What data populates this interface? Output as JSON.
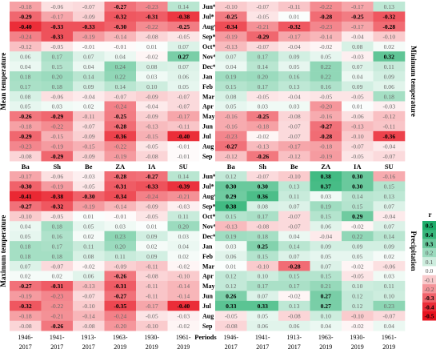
{
  "chart_data": [
    {
      "type": "heatmap",
      "ylabel": "Mean temperature",
      "columns": [
        "Ba",
        "Sh",
        "Be",
        "ZA",
        "IA",
        "SU"
      ],
      "rows": [
        "Jun*",
        "Jul*",
        "Aug*",
        "Sep*",
        "Oct*",
        "Nov*",
        "Dec*",
        "Jan",
        "Feb",
        "Mar",
        "Apr",
        "May",
        "Jun",
        "Jul",
        "Aug",
        "Sep"
      ],
      "values": [
        [
          -0.18,
          -0.06,
          -0.07,
          -0.27,
          -0.23,
          0.14
        ],
        [
          -0.29,
          -0.17,
          -0.09,
          -0.32,
          -0.31,
          -0.38
        ],
        [
          -0.4,
          -0.33,
          -0.33,
          -0.3,
          -0.22,
          -0.25
        ],
        [
          -0.24,
          -0.33,
          -0.19,
          -0.14,
          -0.08,
          -0.05
        ],
        [
          -0.12,
          -0.05,
          -0.01,
          -0.01,
          0.01,
          0.07
        ],
        [
          0.06,
          0.17,
          0.07,
          0.04,
          -0.02,
          0.27
        ],
        [
          0.04,
          0.15,
          0.04,
          0.24,
          0.08,
          0.07
        ],
        [
          0.18,
          0.2,
          0.14,
          0.22,
          0.03,
          0.06
        ],
        [
          0.17,
          0.18,
          0.09,
          0.14,
          0.1,
          0.05
        ],
        [
          0.08,
          -0.06,
          -0.04,
          -0.07,
          -0.09,
          -0.07
        ],
        [
          0.05,
          0.03,
          0.02,
          -0.24,
          -0.04,
          -0.07
        ],
        [
          -0.26,
          -0.29,
          -0.11,
          -0.25,
          -0.09,
          -0.17
        ],
        [
          -0.18,
          -0.22,
          -0.07,
          -0.28,
          -0.13,
          -0.11
        ],
        [
          -0.29,
          -0.15,
          -0.09,
          -0.36,
          -0.15,
          -0.4
        ],
        [
          -0.23,
          -0.19,
          -0.15,
          -0.22,
          -0.05,
          -0.01
        ],
        [
          -0.08,
          -0.29,
          -0.09,
          -0.19,
          -0.08,
          -0.01
        ]
      ]
    },
    {
      "type": "heatmap",
      "ylabel": "Minimum temperature",
      "columns": [
        "Ba",
        "Sh",
        "Be",
        "ZA",
        "IA",
        "SU"
      ],
      "rows": [
        "Jun*",
        "Jul*",
        "Aug*",
        "Sep*",
        "Oct*",
        "Nov*",
        "Dec*",
        "Jan",
        "Feb",
        "Mar",
        "Apr",
        "May",
        "Jun",
        "Jul",
        "Aug",
        "Sep"
      ],
      "values": [
        [
          -0.1,
          -0.07,
          -0.11,
          -0.22,
          -0.17,
          0.13
        ],
        [
          -0.25,
          -0.05,
          0.01,
          -0.28,
          -0.25,
          -0.32
        ],
        [
          -0.34,
          -0.21,
          -0.32,
          -0.23,
          -0.17,
          -0.28
        ],
        [
          -0.19,
          -0.29,
          -0.17,
          -0.14,
          -0.04,
          -0.1
        ],
        [
          -0.13,
          -0.07,
          -0.04,
          -0.02,
          0.08,
          0.02
        ],
        [
          0.07,
          0.17,
          0.09,
          0.05,
          -0.03,
          0.32
        ],
        [
          0.04,
          0.14,
          0.05,
          0.22,
          0.07,
          0.11
        ],
        [
          0.19,
          0.2,
          0.16,
          0.22,
          0.04,
          0.09
        ],
        [
          0.15,
          0.17,
          0.13,
          0.16,
          0.09,
          0.06
        ],
        [
          0.08,
          -0.05,
          -0.04,
          -0.05,
          -0.05,
          0.18
        ],
        [
          0.05,
          0.03,
          0.03,
          -0.2,
          0.01,
          -0.03
        ],
        [
          -0.16,
          -0.25,
          -0.08,
          -0.16,
          -0.06,
          -0.12
        ],
        [
          -0.16,
          -0.18,
          -0.07,
          -0.27,
          -0.13,
          -0.11
        ],
        [
          -0.23,
          -0.02,
          -0.07,
          -0.28,
          -0.1,
          -0.36
        ],
        [
          -0.27,
          -0.13,
          -0.17,
          -0.18,
          -0.07,
          -0.04
        ],
        [
          -0.12,
          -0.26,
          -0.12,
          -0.19,
          -0.05,
          -0.07
        ]
      ]
    },
    {
      "type": "heatmap",
      "ylabel": "Maximum temperature",
      "columns": [
        "1946-\n2017",
        "1941-\n2017",
        "1913-\n2017",
        "1963-\n2019",
        "1930-\n2019",
        "1961-\n2019"
      ],
      "rows": [
        "Jun*",
        "Jul*",
        "Aug*",
        "Sep*",
        "Oct*",
        "Nov*",
        "Dec*",
        "Jan",
        "Feb",
        "Mar",
        "Apr",
        "May",
        "Jun",
        "Jul",
        "Aug",
        "Sep"
      ],
      "values": [
        [
          -0.17,
          -0.06,
          -0.03,
          -0.28,
          -0.27,
          0.14
        ],
        [
          -0.3,
          -0.19,
          -0.05,
          -0.31,
          -0.33,
          -0.39
        ],
        [
          -0.41,
          -0.38,
          -0.3,
          -0.34,
          -0.24,
          -0.21
        ],
        [
          -0.27,
          -0.32,
          -0.19,
          -0.14,
          -0.09,
          -0.03
        ],
        [
          -0.1,
          -0.05,
          0.01,
          -0.01,
          -0.05,
          0.11
        ],
        [
          0.04,
          0.18,
          0.05,
          0.03,
          0.01,
          0.2
        ],
        [
          0.05,
          0.16,
          0.02,
          0.23,
          0.09,
          0.03
        ],
        [
          0.18,
          0.17,
          0.11,
          0.2,
          0.02,
          0.04
        ],
        [
          0.18,
          0.18,
          0.08,
          0.11,
          0.09,
          0.02
        ],
        [
          0.07,
          -0.07,
          -0.02,
          -0.09,
          -0.11,
          -0.02
        ],
        [
          0.02,
          0.02,
          0.06,
          -0.26,
          -0.08,
          -0.1
        ],
        [
          -0.27,
          -0.31,
          -0.13,
          -0.31,
          -0.11,
          -0.14
        ],
        [
          -0.19,
          -0.23,
          -0.07,
          -0.27,
          -0.11,
          -0.14
        ],
        [
          -0.32,
          -0.22,
          -0.1,
          -0.35,
          -0.17,
          -0.4
        ],
        [
          -0.18,
          -0.21,
          -0.14,
          -0.24,
          -0.05,
          -0.03
        ],
        [
          -0.08,
          -0.26,
          -0.08,
          -0.2,
          -0.1,
          -0.02
        ]
      ]
    },
    {
      "type": "heatmap",
      "ylabel": "Precipitation",
      "xlabel": "Periods",
      "columns": [
        "1946-\n2017",
        "1941-\n2017",
        "1913-\n2017",
        "1963-\n2019",
        "1930-\n2019",
        "1961-\n2019"
      ],
      "rows": [
        "Jun*",
        "Jul*",
        "Aug*",
        "Sep*",
        "Oct*",
        "Nov*",
        "Dec*",
        "Jan",
        "Feb",
        "Mar",
        "Apr",
        "May",
        "Jun",
        "Jul",
        "Aug",
        "Sep"
      ],
      "values": [
        [
          0.12,
          -0.07,
          -0.1,
          0.38,
          0.3,
          -0.16
        ],
        [
          0.3,
          0.3,
          0.13,
          0.37,
          0.3,
          0.15
        ],
        [
          0.29,
          0.36,
          0.11,
          0.03,
          0.14,
          0.13
        ],
        [
          0.38,
          0.08,
          0.07,
          0.19,
          0.15,
          0.07
        ],
        [
          0.15,
          0.17,
          -0.07,
          0.15,
          0.29,
          -0.04
        ],
        [
          -0.13,
          -0.08,
          -0.07,
          0.06,
          -0.02,
          0.07
        ],
        [
          0.19,
          0.18,
          0.04,
          -0.04,
          0.22,
          0.14
        ],
        [
          0.03,
          0.25,
          0.14,
          0.09,
          0.09,
          0.09
        ],
        [
          0.06,
          0.15,
          0.07,
          0.05,
          0.05,
          0.02
        ],
        [
          0.01,
          -0.1,
          -0.28,
          0.07,
          -0.02,
          -0.06
        ],
        [
          0.12,
          0.1,
          0.15,
          0.15,
          -0.05,
          0.03
        ],
        [
          0.12,
          0.17,
          0.17,
          0.21,
          0.1,
          0.11
        ],
        [
          0.26,
          0.07,
          -0.02,
          0.27,
          0.12,
          0.1
        ],
        [
          0.33,
          0.33,
          0.13,
          0.27,
          0.12,
          0.23
        ],
        [
          -0.05,
          0.05,
          -0.08,
          0.1,
          -0.1,
          -0.07
        ],
        [
          -0.08,
          0.06,
          0.06,
          0.04,
          -0.02,
          0.04
        ]
      ]
    }
  ],
  "significance_threshold": 0.25,
  "legend": {
    "title": "r",
    "ticks": [
      "0.5",
      "0.4",
      "0.3",
      "0.2",
      "0.1",
      "0.0",
      "-0.1",
      "-0.2",
      "-0.3",
      "-0.4",
      "-0.5"
    ]
  },
  "colors": {
    "positive": "#1fae6c",
    "negative": "#e8131f",
    "zero": "#ffffff"
  }
}
